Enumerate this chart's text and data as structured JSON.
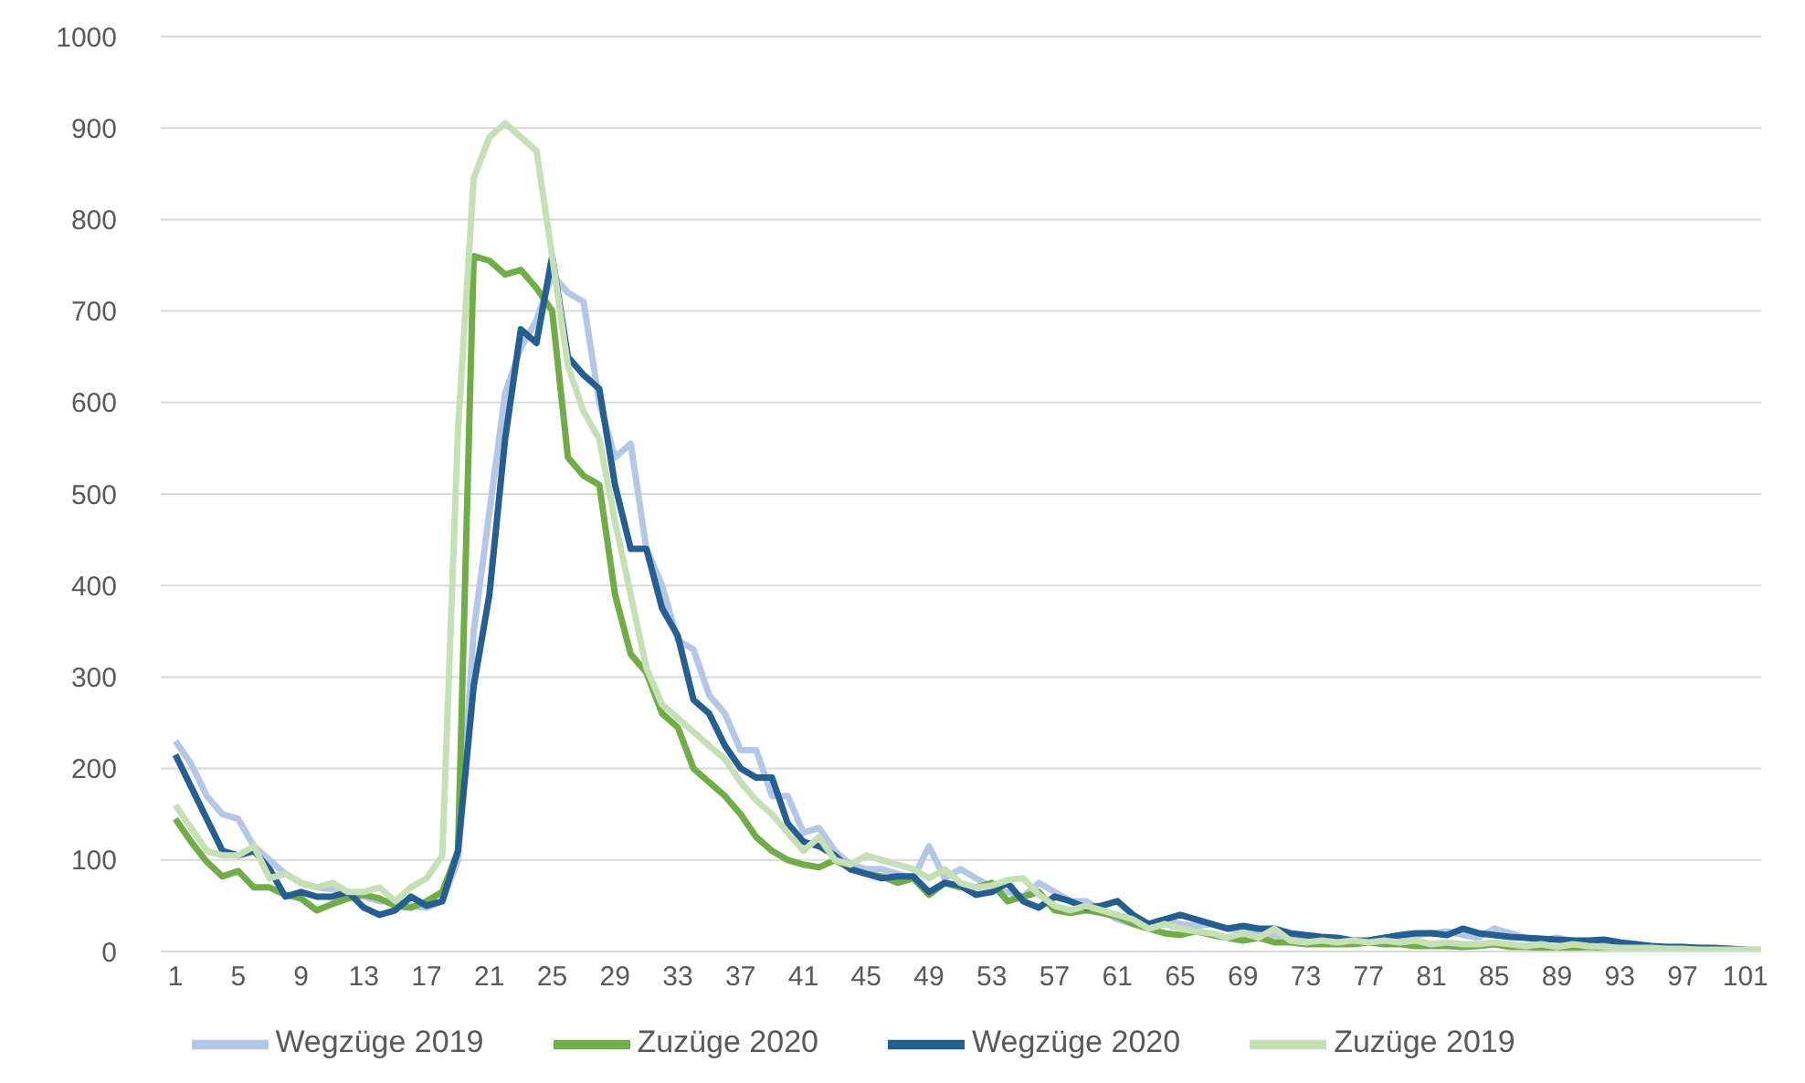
{
  "chart_data": {
    "type": "line",
    "categories": [
      "1",
      null,
      null,
      null,
      "5",
      null,
      null,
      null,
      "9",
      null,
      null,
      null,
      "13",
      null,
      null,
      null,
      "17",
      null,
      null,
      null,
      "21",
      null,
      null,
      null,
      "25",
      null,
      null,
      null,
      "29",
      null,
      null,
      null,
      "33",
      null,
      null,
      null,
      "37",
      null,
      null,
      null,
      "41",
      null,
      null,
      null,
      "45",
      null,
      null,
      null,
      "49",
      null,
      null,
      null,
      "53",
      null,
      null,
      null,
      "57",
      null,
      null,
      null,
      "61",
      null,
      null,
      null,
      "65",
      null,
      null,
      null,
      "69",
      null,
      null,
      null,
      "73",
      null,
      null,
      null,
      "77",
      null,
      null,
      null,
      "81",
      null,
      null,
      null,
      "85",
      null,
      null,
      null,
      "89",
      null,
      null,
      null,
      "93",
      null,
      null,
      null,
      "97",
      null,
      null,
      null,
      "101",
      null
    ],
    "series": [
      {
        "name": "Wegzüge 2019",
        "color": "#b4c7e7",
        "values": [
          230,
          205,
          170,
          150,
          145,
          115,
          100,
          85,
          75,
          70,
          68,
          65,
          60,
          55,
          55,
          50,
          48,
          55,
          100,
          350,
          480,
          610,
          660,
          690,
          740,
          720,
          710,
          600,
          540,
          555,
          440,
          400,
          340,
          330,
          280,
          260,
          220,
          220,
          170,
          170,
          130,
          135,
          110,
          95,
          90,
          90,
          85,
          80,
          115,
          80,
          90,
          80,
          70,
          65,
          60,
          75,
          65,
          55,
          55,
          45,
          35,
          30,
          30,
          35,
          30,
          28,
          30,
          25,
          22,
          20,
          18,
          15,
          15,
          12,
          12,
          10,
          12,
          15,
          15,
          18,
          20,
          22,
          18,
          15,
          25,
          20,
          15,
          12,
          15,
          12,
          10,
          10,
          8,
          8,
          6,
          5,
          5,
          4,
          3,
          3,
          2,
          2
        ]
      },
      {
        "name": "Zuzüge 2020",
        "color": "#70ad47",
        "values": [
          145,
          120,
          98,
          82,
          88,
          70,
          70,
          62,
          58,
          45,
          52,
          58,
          62,
          58,
          50,
          48,
          55,
          65,
          110,
          760,
          755,
          740,
          745,
          725,
          700,
          540,
          520,
          510,
          390,
          325,
          305,
          260,
          245,
          200,
          185,
          170,
          150,
          125,
          110,
          100,
          95,
          92,
          100,
          90,
          85,
          82,
          75,
          80,
          62,
          75,
          70,
          70,
          75,
          55,
          60,
          65,
          45,
          42,
          45,
          42,
          38,
          30,
          25,
          20,
          18,
          22,
          18,
          15,
          12,
          15,
          10,
          10,
          8,
          8,
          8,
          8,
          10,
          8,
          8,
          6,
          6,
          6,
          5,
          6,
          8,
          5,
          5,
          4,
          3,
          4,
          5,
          4,
          3,
          2,
          3,
          2,
          2,
          2,
          1,
          1,
          1,
          null
        ]
      },
      {
        "name": "Wegzüge 2020",
        "color": "#255e91",
        "values": [
          215,
          180,
          145,
          110,
          105,
          110,
          90,
          60,
          65,
          60,
          60,
          65,
          48,
          40,
          45,
          60,
          50,
          55,
          110,
          290,
          390,
          560,
          680,
          665,
          760,
          650,
          630,
          615,
          510,
          440,
          440,
          375,
          345,
          275,
          260,
          225,
          200,
          190,
          190,
          140,
          120,
          115,
          105,
          90,
          85,
          80,
          82,
          82,
          65,
          75,
          72,
          62,
          65,
          75,
          55,
          48,
          60,
          55,
          48,
          50,
          55,
          40,
          30,
          35,
          40,
          35,
          30,
          25,
          28,
          25,
          25,
          20,
          18,
          16,
          15,
          12,
          12,
          15,
          18,
          20,
          20,
          18,
          25,
          20,
          18,
          16,
          15,
          14,
          13,
          12,
          12,
          13,
          10,
          8,
          6,
          5,
          5,
          4,
          4,
          3,
          2,
          null
        ]
      },
      {
        "name": "Zuzüge 2019",
        "color": "#c5e0b4",
        "values": [
          160,
          135,
          110,
          105,
          105,
          115,
          80,
          85,
          75,
          70,
          75,
          65,
          65,
          70,
          55,
          70,
          80,
          105,
          570,
          845,
          890,
          905,
          890,
          875,
          760,
          640,
          590,
          560,
          470,
          390,
          310,
          270,
          255,
          240,
          225,
          210,
          185,
          165,
          150,
          130,
          110,
          125,
          100,
          95,
          105,
          100,
          95,
          90,
          80,
          90,
          75,
          70,
          72,
          78,
          80,
          62,
          50,
          45,
          50,
          45,
          40,
          35,
          25,
          30,
          25,
          22,
          20,
          15,
          20,
          15,
          25,
          12,
          10,
          12,
          10,
          12,
          10,
          12,
          10,
          12,
          8,
          10,
          8,
          8,
          10,
          8,
          6,
          8,
          5,
          8,
          6,
          5,
          4,
          4,
          4,
          3,
          3,
          2,
          2,
          2,
          2,
          2
        ]
      }
    ],
    "ylim": [
      0,
      1000
    ],
    "yticks": [
      0,
      100,
      200,
      300,
      400,
      500,
      600,
      700,
      800,
      900,
      1000
    ],
    "grid": "y",
    "legend": "bottom",
    "marker": "none",
    "line_style": "solid"
  }
}
